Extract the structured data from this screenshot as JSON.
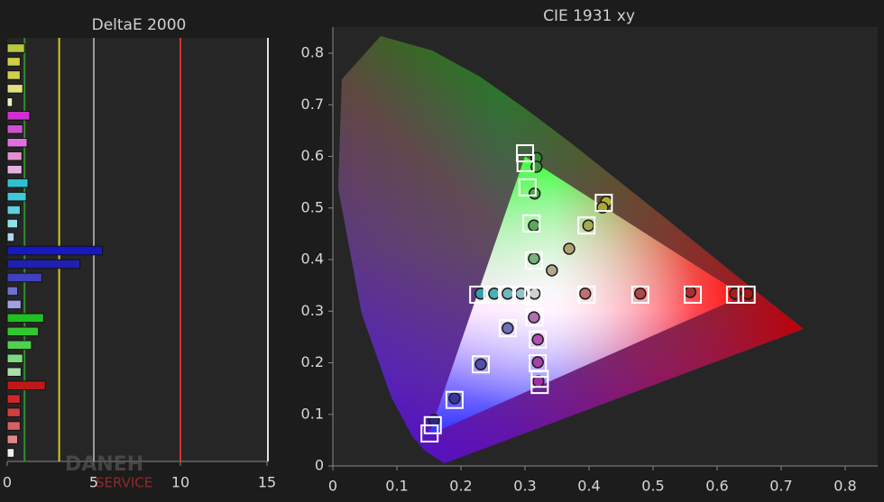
{
  "chart_data": [
    {
      "type": "hbar",
      "title": "DeltaE 2000",
      "values": [
        1.0,
        0.75,
        0.75,
        0.9,
        0.3,
        1.3,
        0.9,
        1.15,
        0.85,
        0.85,
        1.2,
        1.1,
        0.75,
        0.6,
        0.4,
        5.5,
        4.2,
        2.0,
        0.6,
        0.8,
        2.1,
        1.8,
        1.4,
        0.9,
        0.8,
        2.2,
        0.75,
        0.75,
        0.75,
        0.6,
        0.4
      ],
      "colors": [
        "#b8c840",
        "#d0d040",
        "#d0d050",
        "#e0e080",
        "#f0f0c0",
        "#d030d0",
        "#d050d0",
        "#e070e0",
        "#e090d0",
        "#e8b0e0",
        "#30c0d0",
        "#40c8d8",
        "#60d0e0",
        "#90e0e8",
        "#b0d8f0",
        "#1818c0",
        "#2020b0",
        "#4040c0",
        "#7070d0",
        "#a0a0e0",
        "#20c020",
        "#30c830",
        "#50d050",
        "#80d880",
        "#a8e0a8",
        "#c01818",
        "#d02828",
        "#d04040",
        "#d86060",
        "#e08888",
        "#f0f0f0"
      ],
      "xlim": [
        0,
        15
      ],
      "xticks": [
        0,
        5,
        10,
        15
      ],
      "reference_lines": [
        {
          "value": 1,
          "color": "#2f8f2f"
        },
        {
          "value": 3,
          "color": "#d8c820"
        },
        {
          "value": 5,
          "color": "#9a9a9a"
        },
        {
          "value": 10,
          "color": "#d83030"
        }
      ]
    },
    {
      "type": "scatter",
      "title": "CIE 1931 xy",
      "xlim": [
        0,
        0.85
      ],
      "ylim": [
        0,
        0.85
      ],
      "xticks": [
        0,
        0.1,
        0.2,
        0.3,
        0.4,
        0.5,
        0.6,
        0.7,
        0.8
      ],
      "yticks": [
        0,
        0.1,
        0.2,
        0.3,
        0.4,
        0.5,
        0.6,
        0.7,
        0.8
      ],
      "targets": {
        "x": [
          0.3,
          0.301,
          0.304,
          0.31,
          0.314,
          0.313,
          0.423,
          0.396,
          0.396,
          0.48,
          0.562,
          0.628,
          0.646,
          0.227,
          0.249,
          0.272,
          0.294,
          0.273,
          0.231,
          0.19,
          0.156,
          0.151,
          0.315,
          0.32,
          0.32,
          0.323,
          0.323
        ],
        "y": [
          0.606,
          0.587,
          0.54,
          0.47,
          0.398,
          0.329,
          0.51,
          0.466,
          0.332,
          0.332,
          0.332,
          0.332,
          0.332,
          0.332,
          0.332,
          0.332,
          0.332,
          0.267,
          0.197,
          0.128,
          0.079,
          0.063,
          0.288,
          0.245,
          0.199,
          0.169,
          0.157
        ],
        "color": "#ffffff"
      },
      "measured": {
        "x": [
          0.318,
          0.318,
          0.315,
          0.314,
          0.314,
          0.427,
          0.421,
          0.399,
          0.369,
          0.342,
          0.394,
          0.48,
          0.558,
          0.628,
          0.648,
          0.231,
          0.252,
          0.273,
          0.294,
          0.315,
          0.273,
          0.231,
          0.19,
          0.158,
          0.314,
          0.32,
          0.32,
          0.321
        ],
        "y": [
          0.597,
          0.58,
          0.528,
          0.466,
          0.402,
          0.512,
          0.501,
          0.466,
          0.421,
          0.379,
          0.334,
          0.334,
          0.337,
          0.334,
          0.334,
          0.334,
          0.334,
          0.334,
          0.334,
          0.334,
          0.267,
          0.197,
          0.131,
          0.089,
          0.288,
          0.245,
          0.201,
          0.164
        ],
        "colors": [
          "#2f8a2f",
          "#3a9a3a",
          "#4aa84a",
          "#5aa85a",
          "#7ab07a",
          "#b0b030",
          "#a8a838",
          "#a8a850",
          "#b0a070",
          "#b0a890",
          "#c07070",
          "#b04848",
          "#a83030",
          "#a02020",
          "#a01818",
          "#30a0a8",
          "#48b0b8",
          "#70b8c0",
          "#98c0c8",
          "#d0d0d0",
          "#7070b8",
          "#5050a8",
          "#383898",
          "#282888",
          "#b070b0",
          "#b050b0",
          "#a840a8",
          "#a030a0"
        ]
      }
    }
  ],
  "watermark": [
    "DANEH",
    "SERVICE"
  ]
}
